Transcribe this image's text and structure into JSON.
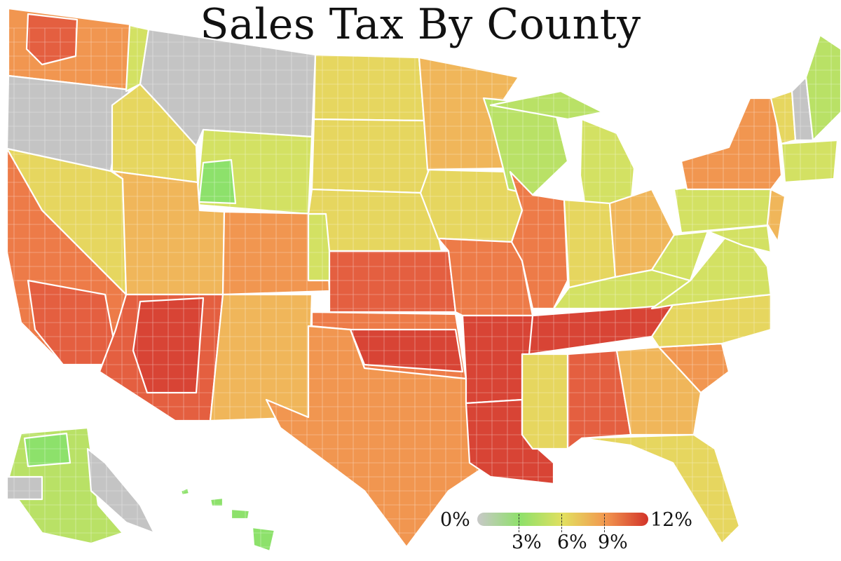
{
  "title": "Sales Tax By County",
  "legend": {
    "min_label": "0%",
    "max_label": "12%",
    "tick_labels": [
      "3%",
      "6%",
      "9%"
    ],
    "stops": [
      {
        "value": 0,
        "color": "#c8c8c8"
      },
      {
        "value": 3,
        "color": "#8ee06a"
      },
      {
        "value": 6,
        "color": "#e2e060"
      },
      {
        "value": 9,
        "color": "#f2974f"
      },
      {
        "value": 12,
        "color": "#d23329"
      }
    ]
  },
  "colors": {
    "no_tax": "#c4c4c4",
    "low": "#8de16b",
    "light_green": "#b9e166",
    "yellow_green": "#d3e163",
    "yellow": "#e6d65f",
    "light_orange": "#f0b65a",
    "orange": "#f19650",
    "dark_orange": "#ed7b48",
    "red_orange": "#e45f40",
    "red": "#d84435",
    "border": "#ffffff"
  }
}
